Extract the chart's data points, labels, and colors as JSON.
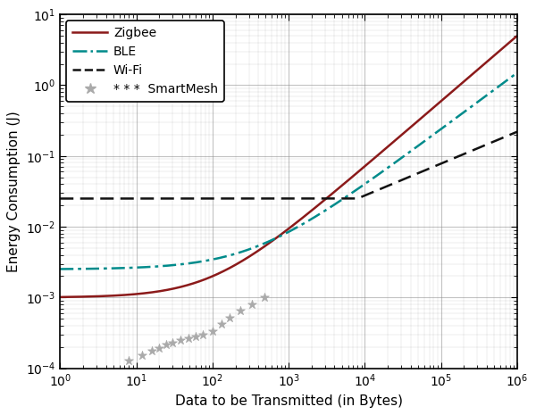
{
  "xlabel": "Data to be Transmitted (in Bytes)",
  "ylabel": "Energy Consumption (J)",
  "xlim": [
    1,
    1000000
  ],
  "ylim": [
    0.0001,
    10
  ],
  "zigbee_color": "#8B1A1A",
  "ble_color": "#008B8B",
  "wifi_color": "#111111",
  "smartmesh_color": "#aaaaaa",
  "smartmesh_x": [
    8,
    12,
    16,
    20,
    25,
    30,
    38,
    48,
    60,
    75,
    100,
    130,
    170,
    230,
    330,
    480
  ],
  "smartmesh_y": [
    0.00013,
    0.000155,
    0.000175,
    0.000195,
    0.000215,
    0.00023,
    0.00025,
    0.000265,
    0.00028,
    0.0003,
    0.00034,
    0.00042,
    0.00052,
    0.00065,
    0.0008,
    0.001
  ],
  "background_color": "#ffffff",
  "grid_color": "#888888"
}
